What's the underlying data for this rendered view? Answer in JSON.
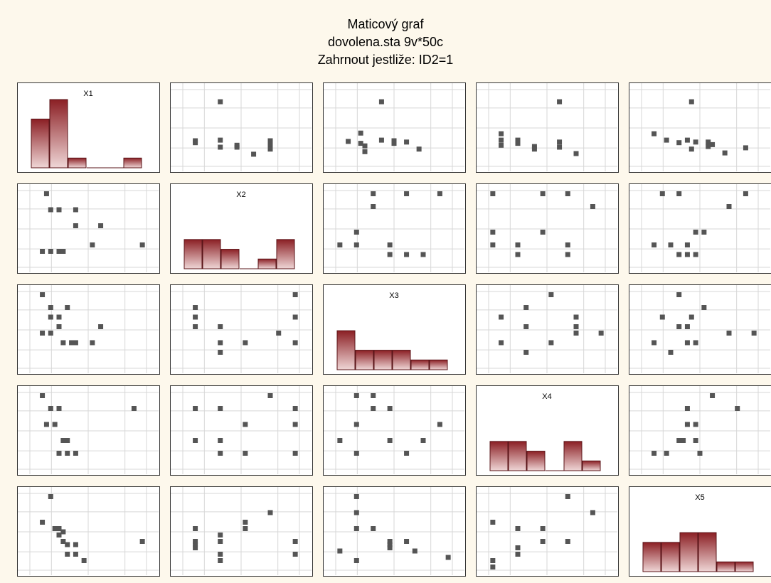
{
  "title_lines": [
    "Maticový graf",
    "dovolena.sta 9v*50c",
    "Zahrnout jestliže: ID2=1"
  ],
  "colors": {
    "background": "#fdf8ec",
    "panel": "#ffffff",
    "grid": "#d7d7d7",
    "point": "#555555",
    "bar_dark": "#8b1f24",
    "bar_light": "#efd6d6",
    "bar_edge": "#5a1418"
  },
  "chart_data": {
    "type": "scatter-matrix",
    "variables": [
      "X1",
      "X2",
      "X3",
      "X4",
      "X5"
    ],
    "axis_range": [
      0,
      10
    ],
    "grid": true,
    "histograms": {
      "X1": [
        5,
        7,
        1,
        0,
        0,
        1
      ],
      "X2": [
        3,
        3,
        2,
        0,
        1,
        3
      ],
      "X3": [
        4,
        2,
        2,
        2,
        1,
        1
      ],
      "X4": [
        3,
        3,
        2,
        0,
        3,
        1
      ],
      "X5": [
        3,
        3,
        4,
        4,
        1,
        1
      ]
    },
    "scatter_panels": [
      {
        "row": "X1",
        "col": "X2",
        "points": [
          [
            1,
            2.5
          ],
          [
            1,
            2.2
          ],
          [
            4,
            1.5
          ],
          [
            4,
            2.6
          ],
          [
            4,
            8.6
          ],
          [
            6,
            1.8
          ],
          [
            6,
            1.5
          ],
          [
            8,
            0.4
          ],
          [
            10,
            2.5
          ],
          [
            10,
            1.8
          ],
          [
            10,
            1.2
          ]
        ]
      },
      {
        "row": "X1",
        "col": "X3",
        "points": [
          [
            1,
            2.4
          ],
          [
            2.5,
            2.1
          ],
          [
            2.5,
            3.7
          ],
          [
            3,
            1.7
          ],
          [
            3,
            0.8
          ],
          [
            5,
            2.6
          ],
          [
            5,
            8.6
          ],
          [
            6.5,
            2.5
          ],
          [
            6.5,
            2.1
          ],
          [
            8,
            2.3
          ],
          [
            9.5,
            1.2
          ]
        ]
      },
      {
        "row": "X1",
        "col": "X4",
        "points": [
          [
            1,
            3.6
          ],
          [
            1,
            2.6
          ],
          [
            1,
            1.8
          ],
          [
            3,
            2.6
          ],
          [
            3,
            2.1
          ],
          [
            5,
            1.6
          ],
          [
            5,
            1.2
          ],
          [
            8,
            2.3
          ],
          [
            8,
            1.5
          ],
          [
            8,
            8.6
          ],
          [
            10,
            0.5
          ]
        ]
      },
      {
        "row": "X1",
        "col": "X5",
        "points": [
          [
            1,
            3.6
          ],
          [
            2.5,
            2.6
          ],
          [
            4,
            2.2
          ],
          [
            5,
            2.6
          ],
          [
            5.5,
            1.2
          ],
          [
            6,
            2.3
          ],
          [
            7.5,
            2.3
          ],
          [
            7.5,
            1.6
          ],
          [
            8,
            1.9
          ],
          [
            9.5,
            0.6
          ],
          [
            12,
            1.4
          ],
          [
            5.5,
            8.6
          ]
        ]
      },
      {
        "row": "X2",
        "col": "X1",
        "points": [
          [
            1,
            1
          ],
          [
            2,
            7.5
          ],
          [
            2,
            1
          ],
          [
            3,
            7.5
          ],
          [
            3,
            1
          ],
          [
            3.5,
            1
          ],
          [
            5,
            7.5
          ],
          [
            5,
            5
          ],
          [
            7,
            2
          ],
          [
            8,
            5
          ],
          [
            1.5,
            10
          ],
          [
            13,
            2
          ]
        ]
      },
      {
        "row": "X2",
        "col": "X3",
        "points": [
          [
            0,
            2
          ],
          [
            2,
            2
          ],
          [
            2,
            4
          ],
          [
            4,
            10
          ],
          [
            4,
            8
          ],
          [
            6,
            2
          ],
          [
            6,
            0.5
          ],
          [
            8,
            0.5
          ],
          [
            8,
            10
          ],
          [
            10,
            0.5
          ],
          [
            12,
            10
          ]
        ]
      },
      {
        "row": "X2",
        "col": "X4",
        "points": [
          [
            0,
            10
          ],
          [
            0,
            4
          ],
          [
            0,
            2
          ],
          [
            3,
            2
          ],
          [
            3,
            0.5
          ],
          [
            6,
            4
          ],
          [
            6,
            10
          ],
          [
            9,
            10
          ],
          [
            9,
            2
          ],
          [
            9,
            0.5
          ],
          [
            12,
            8
          ]
        ]
      },
      {
        "row": "X2",
        "col": "X5",
        "points": [
          [
            1,
            2
          ],
          [
            2,
            10
          ],
          [
            3,
            2
          ],
          [
            4,
            10
          ],
          [
            4,
            0.5
          ],
          [
            5,
            0.5
          ],
          [
            5,
            2
          ],
          [
            6,
            4
          ],
          [
            7,
            4
          ],
          [
            6,
            0.5
          ],
          [
            10,
            8
          ],
          [
            12,
            10
          ]
        ]
      },
      {
        "row": "X3",
        "col": "X1",
        "points": [
          [
            1,
            10
          ],
          [
            2,
            8
          ],
          [
            2,
            6.5
          ],
          [
            3,
            6.5
          ],
          [
            3,
            5
          ],
          [
            4,
            8
          ],
          [
            3.5,
            2.5
          ],
          [
            4.5,
            2.5
          ],
          [
            5,
            2.5
          ],
          [
            7,
            2.5
          ],
          [
            2,
            4
          ],
          [
            1,
            4
          ],
          [
            8,
            5
          ]
        ]
      },
      {
        "row": "X3",
        "col": "X2",
        "points": [
          [
            1,
            8
          ],
          [
            1,
            6.5
          ],
          [
            1,
            5
          ],
          [
            4,
            5
          ],
          [
            4,
            2.5
          ],
          [
            4,
            1
          ],
          [
            7,
            2.5
          ],
          [
            11,
            4
          ],
          [
            13,
            10
          ],
          [
            13,
            6.5
          ],
          [
            13,
            2.5
          ]
        ]
      },
      {
        "row": "X3",
        "col": "X4",
        "points": [
          [
            1,
            6.5
          ],
          [
            1,
            2.5
          ],
          [
            4,
            8
          ],
          [
            4,
            5
          ],
          [
            4,
            1
          ],
          [
            7,
            10
          ],
          [
            7,
            2.5
          ],
          [
            10,
            6.5
          ],
          [
            10,
            5
          ],
          [
            10,
            4
          ],
          [
            13,
            4
          ]
        ]
      },
      {
        "row": "X3",
        "col": "X5",
        "points": [
          [
            1,
            2.5
          ],
          [
            2,
            6.5
          ],
          [
            3,
            1
          ],
          [
            4,
            10
          ],
          [
            4,
            5
          ],
          [
            5,
            5
          ],
          [
            5,
            2.5
          ],
          [
            5.5,
            6.5
          ],
          [
            6,
            2.5
          ],
          [
            7,
            8
          ],
          [
            10,
            4
          ],
          [
            13,
            4
          ]
        ]
      },
      {
        "row": "X4",
        "col": "X1",
        "points": [
          [
            1,
            10
          ],
          [
            2,
            8
          ],
          [
            3,
            8
          ],
          [
            1.5,
            5.5
          ],
          [
            2.5,
            5.5
          ],
          [
            3.5,
            3
          ],
          [
            4,
            3
          ],
          [
            3,
            1
          ],
          [
            4,
            1
          ],
          [
            5,
            1
          ],
          [
            12,
            8
          ]
        ]
      },
      {
        "row": "X4",
        "col": "X2",
        "points": [
          [
            1,
            8
          ],
          [
            1,
            3
          ],
          [
            4,
            8
          ],
          [
            4,
            3
          ],
          [
            4,
            1
          ],
          [
            7,
            5.5
          ],
          [
            7,
            1
          ],
          [
            10,
            10
          ],
          [
            13,
            8
          ],
          [
            13,
            5.5
          ],
          [
            13,
            1
          ]
        ]
      },
      {
        "row": "X4",
        "col": "X3",
        "points": [
          [
            0,
            3
          ],
          [
            2,
            10
          ],
          [
            2,
            5.5
          ],
          [
            2,
            1
          ],
          [
            4,
            8
          ],
          [
            4,
            10
          ],
          [
            6,
            8
          ],
          [
            6,
            3
          ],
          [
            8,
            1
          ],
          [
            10,
            3
          ],
          [
            12,
            5.5
          ]
        ]
      },
      {
        "row": "X4",
        "col": "X5",
        "points": [
          [
            1,
            1
          ],
          [
            2.5,
            1
          ],
          [
            4,
            3
          ],
          [
            4.5,
            3
          ],
          [
            5,
            5.5
          ],
          [
            5,
            8
          ],
          [
            6,
            3
          ],
          [
            6,
            5.5
          ],
          [
            6.5,
            1
          ],
          [
            8,
            10
          ],
          [
            11,
            8
          ]
        ]
      },
      {
        "row": "X5",
        "col": "X1",
        "points": [
          [
            1,
            6
          ],
          [
            2,
            10
          ],
          [
            2.5,
            5
          ],
          [
            3,
            5
          ],
          [
            3,
            4
          ],
          [
            3.5,
            4.5
          ],
          [
            3.5,
            3
          ],
          [
            4,
            2.5
          ],
          [
            4,
            1
          ],
          [
            5,
            1
          ],
          [
            5,
            2.5
          ],
          [
            6,
            0
          ],
          [
            13,
            3
          ]
        ]
      },
      {
        "row": "X5",
        "col": "X2",
        "points": [
          [
            1,
            5
          ],
          [
            1,
            3
          ],
          [
            1,
            2.5
          ],
          [
            1,
            2
          ],
          [
            4,
            4
          ],
          [
            4,
            3
          ],
          [
            4,
            1
          ],
          [
            4,
            0
          ],
          [
            7,
            5
          ],
          [
            7,
            6
          ],
          [
            10,
            7.5
          ],
          [
            13,
            3
          ],
          [
            13,
            1
          ]
        ]
      },
      {
        "row": "X5",
        "col": "X3",
        "points": [
          [
            0,
            1.5
          ],
          [
            2,
            10
          ],
          [
            2,
            7.5
          ],
          [
            2,
            5
          ],
          [
            2,
            0
          ],
          [
            4,
            5
          ],
          [
            6,
            3
          ],
          [
            6,
            2.5
          ],
          [
            6,
            2
          ],
          [
            8,
            3
          ],
          [
            9,
            1.5
          ],
          [
            13,
            0.5
          ]
        ]
      },
      {
        "row": "X5",
        "col": "X4",
        "points": [
          [
            0,
            6
          ],
          [
            0,
            0
          ],
          [
            0,
            -1
          ],
          [
            3,
            5
          ],
          [
            3,
            2
          ],
          [
            3,
            1
          ],
          [
            6,
            5
          ],
          [
            6,
            3
          ],
          [
            9,
            10
          ],
          [
            9,
            3
          ],
          [
            12,
            7.5
          ]
        ]
      }
    ]
  }
}
